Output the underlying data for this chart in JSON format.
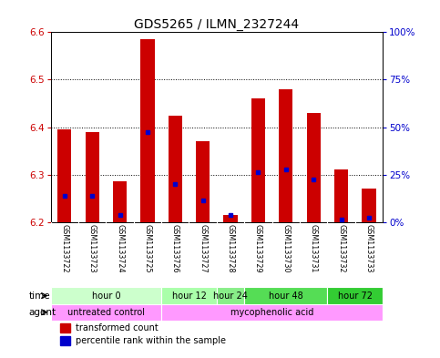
{
  "title": "GDS5265 / ILMN_2327244",
  "samples": [
    "GSM1133722",
    "GSM1133723",
    "GSM1133724",
    "GSM1133725",
    "GSM1133726",
    "GSM1133727",
    "GSM1133728",
    "GSM1133729",
    "GSM1133730",
    "GSM1133731",
    "GSM1133732",
    "GSM1133733"
  ],
  "bar_tops": [
    6.395,
    6.39,
    6.285,
    6.585,
    6.425,
    6.37,
    6.215,
    6.46,
    6.48,
    6.43,
    6.31,
    6.27
  ],
  "bar_base": 6.2,
  "blue_dot_values": [
    6.255,
    6.255,
    6.215,
    6.39,
    6.28,
    6.245,
    6.215,
    6.305,
    6.31,
    6.29,
    6.205,
    6.21
  ],
  "ylim": [
    6.2,
    6.6
  ],
  "yticks_left": [
    6.2,
    6.3,
    6.4,
    6.5,
    6.6
  ],
  "yticks_right": [
    0,
    25,
    50,
    75,
    100
  ],
  "bar_color": "#cc0000",
  "dot_color": "#0000cc",
  "time_groups": [
    {
      "label": "hour 0",
      "start": 0,
      "end": 3
    },
    {
      "label": "hour 12",
      "start": 4,
      "end": 5
    },
    {
      "label": "hour 24",
      "start": 6,
      "end": 6
    },
    {
      "label": "hour 48",
      "start": 7,
      "end": 9
    },
    {
      "label": "hour 72",
      "start": 10,
      "end": 11
    }
  ],
  "time_colors": [
    "#ccffcc",
    "#aaffaa",
    "#88ee88",
    "#55dd55",
    "#33cc33"
  ],
  "agent_groups": [
    {
      "label": "untreated control",
      "start": 0,
      "end": 3
    },
    {
      "label": "mycophenolic acid",
      "start": 4,
      "end": 11
    }
  ],
  "agent_colors": [
    "#ff99ff",
    "#ff99ff"
  ],
  "bg_color": "#ffffff",
  "tick_bg_color": "#cccccc",
  "bar_color_left": "#cc0000",
  "bar_color_right": "#0000cc"
}
